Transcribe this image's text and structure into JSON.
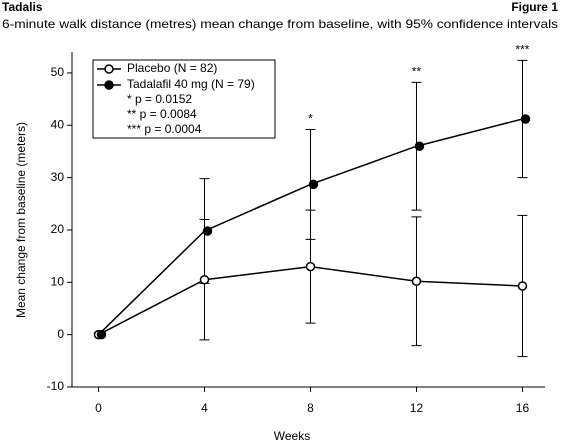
{
  "chart_data": {
    "type": "line",
    "header": "Tadalis",
    "figure_label": "Figure 1",
    "title": "6-minute walk distance (metres) mean change from baseline, with 95% confidence intervals",
    "xlabel": "Weeks",
    "ylabel": "Mean change from baseline (meters)",
    "x": [
      0,
      4,
      8,
      12,
      16
    ],
    "series": [
      {
        "name": "Placebo (N = 82)",
        "color": "#000000",
        "marker": "open",
        "values": [
          0,
          10.5,
          13,
          10.2,
          9.3
        ],
        "errors": [
          null,
          11.5,
          10.8,
          12.3,
          13.5
        ]
      },
      {
        "name": "Tadalafil 40 mg (N = 79)",
        "color": "#000000",
        "marker": "filled",
        "values": [
          0,
          19.8,
          28.7,
          36,
          41.2
        ],
        "errors": [
          null,
          10,
          10.5,
          12.2,
          11.2
        ],
        "labels": [
          null,
          null,
          "*",
          "**",
          "***"
        ]
      }
    ],
    "notes": [
      "* p = 0.0152",
      "** p = 0.0084",
      "*** p = 0.0004"
    ],
    "xlim": [
      -1,
      16.85
    ],
    "ylim": [
      -10,
      54
    ],
    "xticks": [
      0,
      4,
      8,
      12,
      16
    ],
    "yticks": [
      -10,
      0,
      10,
      20,
      30,
      40,
      50
    ],
    "legend": "upper left",
    "grid": false
  }
}
